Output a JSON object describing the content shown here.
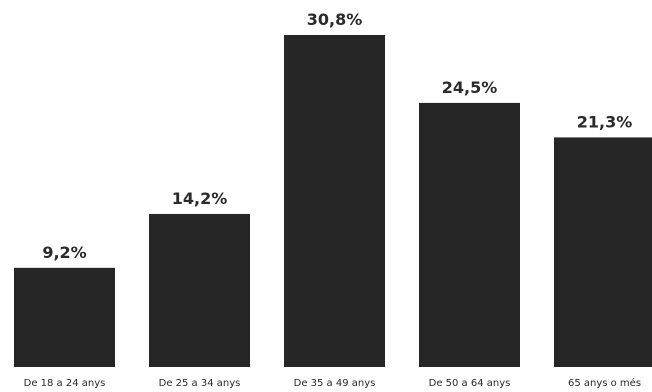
{
  "chart_data": {
    "type": "bar",
    "categories": [
      "De 18 a 24 anys",
      "De 25 a 34 anys",
      "De 35 a 49 anys",
      "De 50 a 64 anys",
      "65 anys o més"
    ],
    "values": [
      9.2,
      14.2,
      30.8,
      24.5,
      21.3
    ],
    "value_labels": [
      "9,2%",
      "14,2%",
      "30,8%",
      "24,5%",
      "21,3%"
    ],
    "title": "",
    "xlabel": "",
    "ylabel": "",
    "ylim": [
      0,
      30.8
    ],
    "grid": false,
    "legend": "none",
    "colors": {
      "bar": "#262626",
      "text": "#2a2a2a",
      "background": "#ffffff"
    }
  }
}
